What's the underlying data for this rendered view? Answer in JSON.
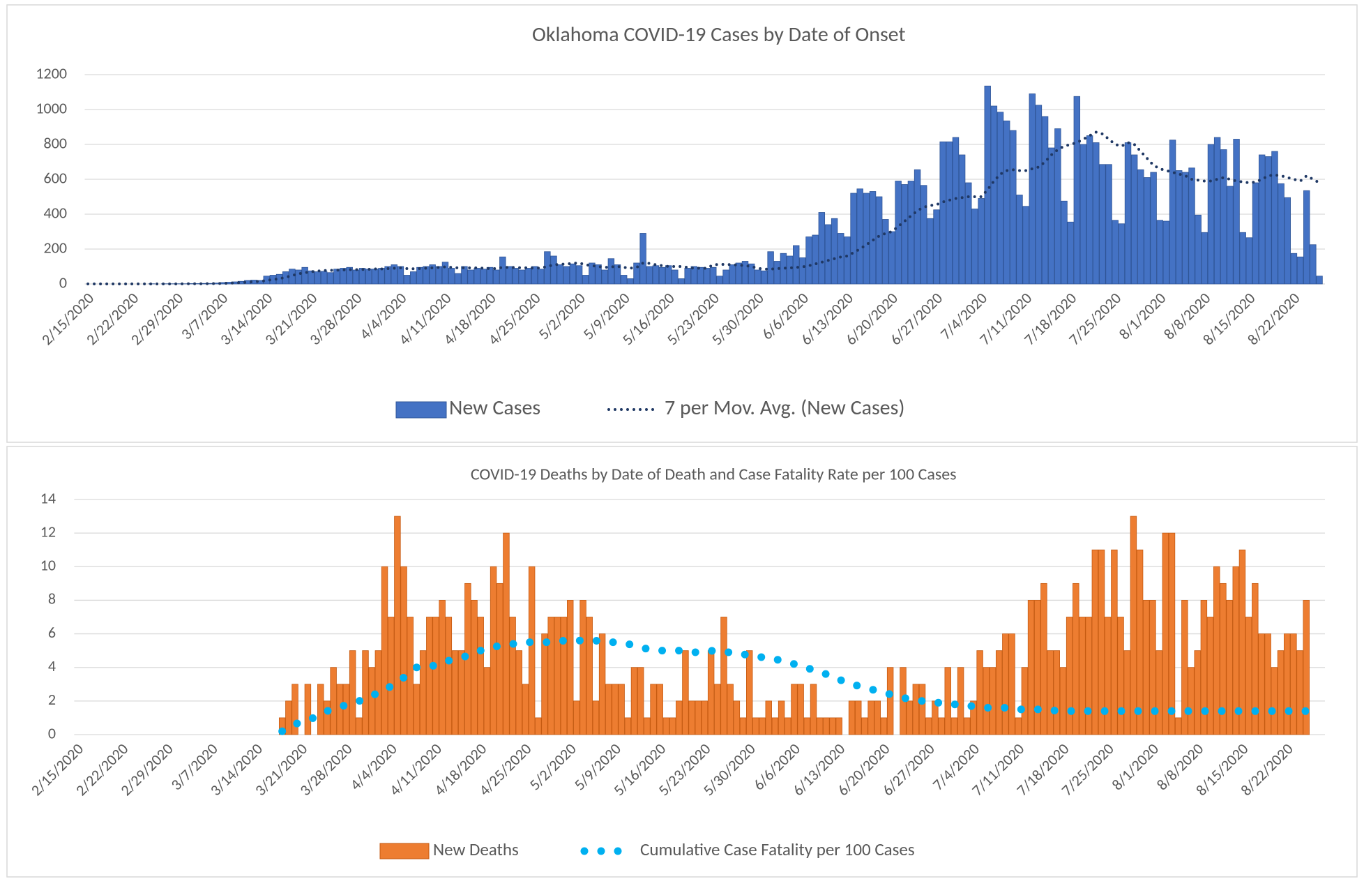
{
  "chart_data": [
    {
      "type": "bar",
      "title": "Oklahoma COVID-19 Cases by Date of Onset",
      "categories": [
        "2/15/2020",
        null,
        null,
        null,
        null,
        null,
        null,
        "2/22/2020",
        null,
        null,
        null,
        null,
        null,
        null,
        "2/29/2020",
        null,
        null,
        null,
        null,
        null,
        null,
        "3/7/2020",
        null,
        null,
        null,
        null,
        null,
        null,
        "3/14/2020",
        null,
        null,
        null,
        null,
        null,
        null,
        "3/21/2020",
        null,
        null,
        null,
        null,
        null,
        null,
        "3/28/2020",
        null,
        null,
        null,
        null,
        null,
        null,
        "4/4/2020",
        null,
        null,
        null,
        null,
        null,
        null,
        "4/11/2020",
        null,
        null,
        null,
        null,
        null,
        null,
        "4/18/2020",
        null,
        null,
        null,
        null,
        null,
        null,
        "4/25/2020",
        null,
        null,
        null,
        null,
        null,
        null,
        "5/2/2020",
        null,
        null,
        null,
        null,
        null,
        null,
        "5/9/2020",
        null,
        null,
        null,
        null,
        null,
        null,
        "5/16/2020",
        null,
        null,
        null,
        null,
        null,
        null,
        "5/23/2020",
        null,
        null,
        null,
        null,
        null,
        null,
        "5/30/2020",
        null,
        null,
        null,
        null,
        null,
        null,
        "6/6/2020",
        null,
        null,
        null,
        null,
        null,
        null,
        "6/13/2020",
        null,
        null,
        null,
        null,
        null,
        null,
        "6/20/2020",
        null,
        null,
        null,
        null,
        null,
        null,
        "6/27/2020",
        null,
        null,
        null,
        null,
        null,
        null,
        "7/4/2020",
        null,
        null,
        null,
        null,
        null,
        null,
        "7/11/2020",
        null,
        null,
        null,
        null,
        null,
        null,
        "7/18/2020",
        null,
        null,
        null,
        null,
        null,
        null,
        "7/25/2020",
        null,
        null,
        null,
        null,
        null,
        null,
        "8/1/2020",
        null,
        null,
        null,
        null,
        null,
        null,
        "8/8/2020",
        null,
        null,
        null,
        null,
        null,
        null,
        "8/15/2020",
        null,
        null,
        null,
        null,
        null,
        null,
        "8/22/2020",
        null,
        null,
        null,
        null
      ],
      "series": [
        {
          "name": "New Cases",
          "type": "bar",
          "color": "#4472c4",
          "values": [
            0,
            0,
            0,
            0,
            0,
            0,
            0,
            0,
            0,
            0,
            1,
            0,
            1,
            1,
            1,
            1,
            2,
            2,
            3,
            3,
            5,
            8,
            10,
            12,
            15,
            20,
            22,
            20,
            45,
            50,
            55,
            70,
            85,
            80,
            95,
            75,
            70,
            72,
            65,
            85,
            90,
            95,
            80,
            90,
            85,
            85,
            90,
            100,
            110,
            100,
            50,
            70,
            95,
            100,
            110,
            100,
            125,
            90,
            60,
            100,
            80,
            90,
            85,
            95,
            80,
            155,
            100,
            90,
            80,
            90,
            100,
            85,
            185,
            160,
            110,
            100,
            115,
            105,
            50,
            120,
            110,
            80,
            145,
            110,
            50,
            30,
            120,
            290,
            100,
            105,
            95,
            105,
            80,
            30,
            90,
            100,
            95,
            90,
            95,
            45,
            80,
            110,
            120,
            130,
            115,
            80,
            75,
            185,
            130,
            175,
            160,
            220,
            150,
            270,
            280,
            410,
            340,
            375,
            290,
            270,
            520,
            545,
            520,
            530,
            500,
            370,
            300,
            590,
            570,
            590,
            655,
            565,
            375,
            425,
            815,
            815,
            840,
            740,
            580,
            430,
            490,
            1135,
            1020,
            985,
            935,
            880,
            510,
            445,
            1090,
            1025,
            960,
            780,
            890,
            475,
            355,
            1075,
            800,
            850,
            810,
            685,
            685,
            365,
            345,
            810,
            740,
            655,
            610,
            640,
            365,
            360,
            825,
            650,
            640,
            665,
            395,
            295,
            800,
            840,
            770,
            560,
            830,
            295,
            265,
            580,
            740,
            730,
            760,
            575,
            495,
            175,
            155,
            535,
            225,
            45
          ]
        },
        {
          "name": "7 per Mov. Avg. (New Cases)",
          "type": "line",
          "color": "#1f3864",
          "values": [
            0,
            0,
            0,
            0,
            0,
            0,
            0,
            0,
            0,
            0,
            0,
            0,
            0,
            0,
            0,
            1,
            1,
            1,
            1,
            2,
            2,
            3,
            4,
            6,
            8,
            10,
            13,
            15,
            20,
            25,
            30,
            38,
            48,
            58,
            65,
            70,
            74,
            77,
            78,
            79,
            80,
            82,
            82,
            83,
            84,
            86,
            86,
            88,
            90,
            92,
            88,
            87,
            88,
            90,
            92,
            95,
            98,
            95,
            92,
            93,
            92,
            92,
            90,
            88,
            88,
            95,
            95,
            94,
            93,
            92,
            90,
            92,
            100,
            110,
            112,
            115,
            118,
            120,
            110,
            105,
            100,
            95,
            98,
            100,
            95,
            90,
            95,
            120,
            118,
            110,
            105,
            100,
            100,
            100,
            95,
            90,
            90,
            90,
            110,
            112,
            112,
            110,
            108,
            105,
            100,
            90,
            85,
            85,
            88,
            90,
            92,
            95,
            98,
            105,
            115,
            125,
            135,
            145,
            155,
            160,
            180,
            200,
            225,
            250,
            275,
            290,
            300,
            330,
            360,
            390,
            420,
            440,
            450,
            455,
            470,
            480,
            490,
            495,
            500,
            500,
            500,
            540,
            590,
            630,
            650,
            655,
            650,
            650,
            660,
            670,
            700,
            740,
            770,
            790,
            800,
            810,
            830,
            850,
            870,
            860,
            830,
            800,
            790,
            810,
            800,
            760,
            720,
            680,
            660,
            650,
            640,
            630,
            620,
            600,
            595,
            590,
            590,
            600,
            610,
            600,
            590,
            585,
            580,
            585,
            600,
            620,
            625,
            620,
            610,
            600,
            590,
            620,
            600,
            580
          ]
        }
      ],
      "ylim": [
        0,
        1200
      ],
      "yticks": [
        0,
        200,
        400,
        600,
        800,
        1000,
        1200
      ],
      "grid": true
    },
    {
      "type": "bar",
      "title": "COVID-19 Deaths by Date of Death and  Case Fatality Rate per 100 Cases",
      "categories": [
        "2/15/2020",
        null,
        null,
        null,
        null,
        null,
        null,
        "2/22/2020",
        null,
        null,
        null,
        null,
        null,
        null,
        "2/29/2020",
        null,
        null,
        null,
        null,
        null,
        null,
        "3/7/2020",
        null,
        null,
        null,
        null,
        null,
        null,
        "3/14/2020",
        null,
        null,
        null,
        null,
        null,
        null,
        "3/21/2020",
        null,
        null,
        null,
        null,
        null,
        null,
        "3/28/2020",
        null,
        null,
        null,
        null,
        null,
        null,
        "4/4/2020",
        null,
        null,
        null,
        null,
        null,
        null,
        "4/11/2020",
        null,
        null,
        null,
        null,
        null,
        null,
        "4/18/2020",
        null,
        null,
        null,
        null,
        null,
        null,
        "4/25/2020",
        null,
        null,
        null,
        null,
        null,
        null,
        "5/2/2020",
        null,
        null,
        null,
        null,
        null,
        null,
        "5/9/2020",
        null,
        null,
        null,
        null,
        null,
        null,
        "5/16/2020",
        null,
        null,
        null,
        null,
        null,
        null,
        "5/23/2020",
        null,
        null,
        null,
        null,
        null,
        null,
        "5/30/2020",
        null,
        null,
        null,
        null,
        null,
        null,
        "6/6/2020",
        null,
        null,
        null,
        null,
        null,
        null,
        "6/13/2020",
        null,
        null,
        null,
        null,
        null,
        null,
        "6/20/2020",
        null,
        null,
        null,
        null,
        null,
        null,
        "6/27/2020",
        null,
        null,
        null,
        null,
        null,
        null,
        "7/4/2020",
        null,
        null,
        null,
        null,
        null,
        null,
        "7/11/2020",
        null,
        null,
        null,
        null,
        null,
        null,
        "7/18/2020",
        null,
        null,
        null,
        null,
        null,
        null,
        "7/25/2020",
        null,
        null,
        null,
        null,
        null,
        null,
        "8/1/2020",
        null,
        null,
        null,
        null,
        null,
        null,
        "8/8/2020",
        null,
        null,
        null,
        null,
        null,
        null,
        "8/15/2020",
        null,
        null,
        null,
        null,
        null,
        null,
        "8/22/2020",
        null,
        null,
        null,
        null
      ],
      "series": [
        {
          "name": "New Deaths",
          "type": "bar",
          "color": "#ed7d31",
          "values": [
            null,
            null,
            null,
            null,
            null,
            null,
            null,
            null,
            null,
            null,
            null,
            null,
            null,
            null,
            null,
            null,
            null,
            null,
            null,
            null,
            null,
            null,
            null,
            null,
            null,
            null,
            null,
            null,
            null,
            null,
            null,
            null,
            1,
            2,
            3,
            0,
            3,
            0,
            3,
            2,
            4,
            3,
            3,
            5,
            1,
            5,
            4,
            5,
            10,
            7,
            13,
            10,
            7,
            3,
            5,
            7,
            7,
            8,
            7,
            5,
            5,
            9,
            8,
            7,
            4,
            10,
            9,
            12,
            7,
            5,
            3,
            10,
            1,
            6,
            7,
            7,
            7,
            8,
            2,
            8,
            7,
            2,
            6,
            3,
            3,
            3,
            1,
            4,
            4,
            1,
            3,
            3,
            1,
            1,
            2,
            5,
            2,
            2,
            2,
            5,
            3,
            7,
            3,
            2,
            1,
            5,
            1,
            1,
            2,
            1,
            2,
            1,
            3,
            3,
            1,
            3,
            1,
            1,
            1,
            1,
            0,
            2,
            2,
            1,
            2,
            2,
            1,
            4,
            0,
            4,
            2,
            3,
            3,
            1,
            2,
            1,
            4,
            1,
            4,
            1,
            2,
            5,
            4,
            4,
            5,
            6,
            6,
            1,
            4,
            8,
            8,
            9,
            5,
            5,
            4,
            7,
            9,
            7,
            7,
            11,
            11,
            7,
            11,
            7,
            5,
            13,
            11,
            8,
            8,
            5,
            12,
            12,
            1,
            8,
            4,
            5,
            8,
            7,
            10,
            9,
            8,
            10,
            11,
            7,
            9,
            6,
            6,
            4,
            5,
            6,
            6,
            5,
            8,
            null
          ]
        },
        {
          "name": "Cumulative Case Fatality per 100 Cases",
          "type": "line",
          "color": "#00b0f0",
          "values": [
            null,
            null,
            null,
            null,
            null,
            null,
            null,
            null,
            null,
            null,
            null,
            null,
            null,
            null,
            null,
            null,
            null,
            null,
            null,
            null,
            null,
            null,
            null,
            null,
            null,
            null,
            null,
            null,
            null,
            null,
            null,
            null,
            0.2,
            0.4,
            0.6,
            0.8,
            0.9,
            1.0,
            1.2,
            1.4,
            1.5,
            1.6,
            1.8,
            1.9,
            2.0,
            2.1,
            2.3,
            2.5,
            2.6,
            2.9,
            3.2,
            3.4,
            3.7,
            4.0,
            4.0,
            4.1,
            4.1,
            4.3,
            4.4,
            4.5,
            4.6,
            4.7,
            4.9,
            5.0,
            5.1,
            5.2,
            5.3,
            5.3,
            5.4,
            5.4,
            5.5,
            5.5,
            5.5,
            5.5,
            5.5,
            5.5,
            5.6,
            5.6,
            5.6,
            5.6,
            5.6,
            5.6,
            5.5,
            5.5,
            5.5,
            5.4,
            5.4,
            5.3,
            5.2,
            5.1,
            5.1,
            5.0,
            5.0,
            5.0,
            5.0,
            5.0,
            4.9,
            4.9,
            5.0,
            5.0,
            4.9,
            4.9,
            4.9,
            4.8,
            4.8,
            4.7,
            4.7,
            4.6,
            4.5,
            4.5,
            4.4,
            4.3,
            4.2,
            4.1,
            4.0,
            3.8,
            3.7,
            3.6,
            3.4,
            3.3,
            3.1,
            3.0,
            2.9,
            2.8,
            2.7,
            2.6,
            2.5,
            2.4,
            2.3,
            2.2,
            2.1,
            2.1,
            2.0,
            2.0,
            1.9,
            1.9,
            1.8,
            1.8,
            1.8,
            1.7,
            1.7,
            1.7,
            1.6,
            1.6,
            1.6,
            1.6,
            1.5,
            1.5,
            1.5,
            1.5,
            1.5,
            1.5,
            1.5,
            1.4,
            1.4,
            1.4,
            1.4,
            1.4,
            1.4,
            1.4,
            1.4,
            1.4,
            1.4,
            1.4,
            1.4,
            1.4,
            1.4,
            1.4,
            1.4,
            1.4,
            1.4,
            1.4,
            1.4,
            1.4,
            1.4,
            1.4,
            1.4,
            1.4,
            1.4,
            1.4,
            1.4,
            1.4,
            1.4,
            1.4,
            1.4,
            1.4,
            1.4,
            1.4,
            1.4,
            1.4,
            1.4,
            1.4,
            1.4,
            1.4
          ]
        }
      ],
      "ylim": [
        0,
        14
      ],
      "yticks": [
        0,
        2,
        4,
        6,
        8,
        10,
        12,
        14
      ],
      "grid": true
    }
  ]
}
